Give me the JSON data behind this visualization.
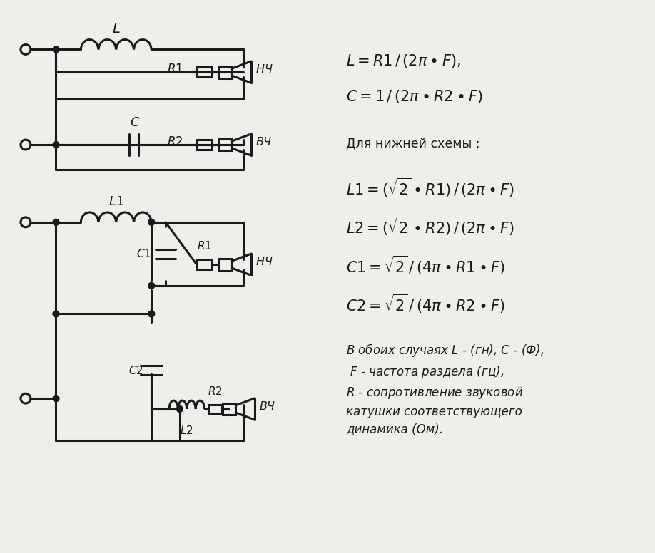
{
  "bg_color": "#f0eeeb",
  "line_color": "#1a1a1a",
  "line_width": 2.2,
  "title": "",
  "formula1_line1": "$L = R1\\,/\\,(2\\pi \\bullet F),$",
  "formula1_line2": "$C = 1\\,/\\,(2\\pi \\bullet R2 \\bullet F)$",
  "formula2_header": "Для нижней схемы ;",
  "formula2_line1": "$L1 = (\\sqrt{2} \\bullet R1)\\,/\\,(2\\pi \\bullet F)$",
  "formula2_line2": "$L2 = (\\sqrt{2} \\bullet R2)\\,/\\,(2\\pi \\bullet F)$",
  "formula2_line3": "$C1 = \\sqrt{2}\\,/\\,(4\\pi \\bullet R1 \\bullet F)$",
  "formula2_line4": "$C2 = \\sqrt{2}\\,/\\,(4\\pi \\bullet R2 \\bullet F)$",
  "note": "В обоих случаях $L$ - (гн), $C$ - (Ф),\n $F$ - частота раздела (гц),\n$R$ - сопротивление звуковой\nкатушки соответствующего\nдинамика (Ом)."
}
